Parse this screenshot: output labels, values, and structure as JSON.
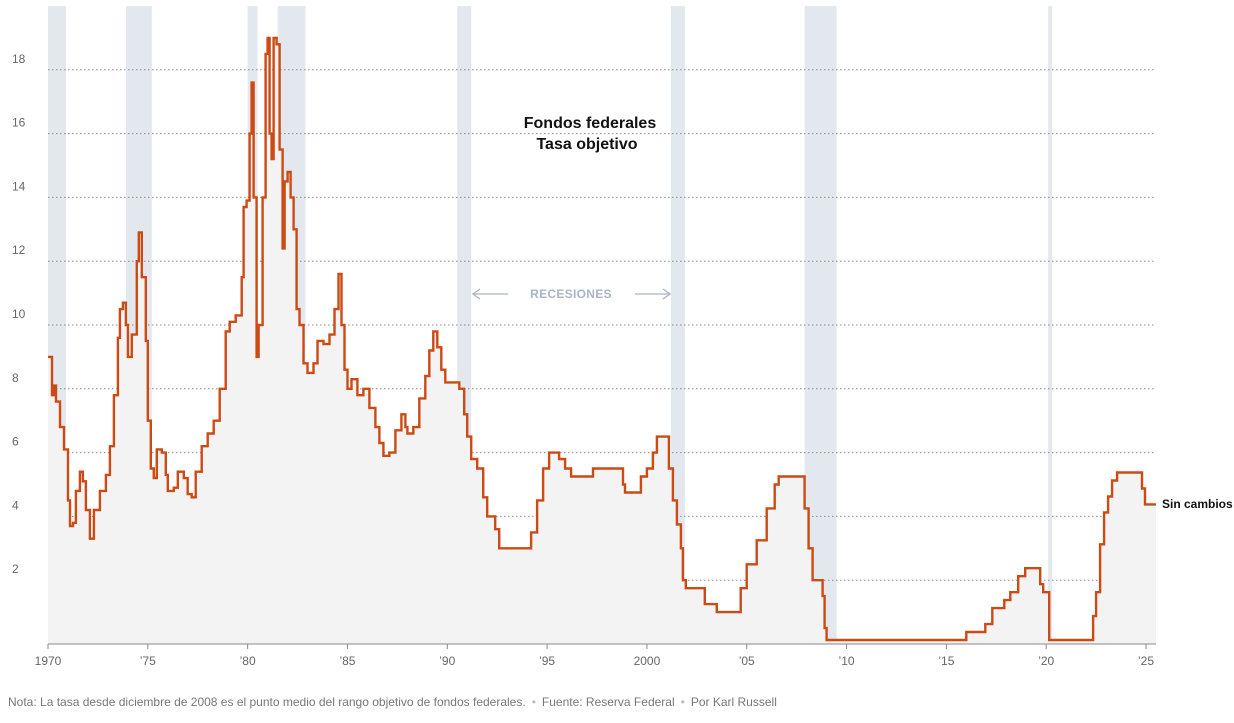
{
  "chart_data": {
    "type": "line",
    "title_lines": [
      "Fondos federales",
      "Tasa objetivo"
    ],
    "recession_label": "RECESIONES",
    "end_label": "Sin cambios",
    "xlim": [
      1970,
      2025.5
    ],
    "ylim": [
      0,
      20
    ],
    "y_ticks": [
      2,
      4,
      6,
      8,
      10,
      12,
      14,
      16,
      18
    ],
    "x_ticks": [
      {
        "year": 1970,
        "label": "1970"
      },
      {
        "year": 1975,
        "label": "’75"
      },
      {
        "year": 1980,
        "label": "’80"
      },
      {
        "year": 1985,
        "label": "’85"
      },
      {
        "year": 1990,
        "label": "’90"
      },
      {
        "year": 1995,
        "label": "’95"
      },
      {
        "year": 2000,
        "label": "2000"
      },
      {
        "year": 2005,
        "label": "’05"
      },
      {
        "year": 2010,
        "label": "’10"
      },
      {
        "year": 2015,
        "label": "’15"
      },
      {
        "year": 2020,
        "label": "’20"
      },
      {
        "year": 2025,
        "label": "’25"
      }
    ],
    "recessions": [
      [
        1970.0,
        1970.9
      ],
      [
        1973.9,
        1975.2
      ],
      [
        1980.0,
        1980.5
      ],
      [
        1981.5,
        1982.9
      ],
      [
        1990.5,
        1991.2
      ],
      [
        2001.2,
        2001.9
      ],
      [
        2007.9,
        2009.5
      ],
      [
        2020.1,
        2020.3
      ]
    ],
    "series": [
      {
        "color": "#cc4a14",
        "points": [
          [
            1970.0,
            9.0
          ],
          [
            1970.15,
            9.0
          ],
          [
            1970.2,
            7.8
          ],
          [
            1970.3,
            8.1
          ],
          [
            1970.4,
            7.6
          ],
          [
            1970.6,
            6.8
          ],
          [
            1970.8,
            6.1
          ],
          [
            1971.0,
            4.5
          ],
          [
            1971.1,
            3.7
          ],
          [
            1971.25,
            3.8
          ],
          [
            1971.4,
            4.8
          ],
          [
            1971.6,
            5.4
          ],
          [
            1971.75,
            5.1
          ],
          [
            1971.9,
            4.2
          ],
          [
            1972.1,
            3.3
          ],
          [
            1972.3,
            4.2
          ],
          [
            1972.6,
            4.8
          ],
          [
            1972.9,
            5.3
          ],
          [
            1973.1,
            6.2
          ],
          [
            1973.3,
            7.8
          ],
          [
            1973.5,
            9.6
          ],
          [
            1973.6,
            10.5
          ],
          [
            1973.75,
            10.7
          ],
          [
            1973.9,
            10.0
          ],
          [
            1974.0,
            9.0
          ],
          [
            1974.2,
            9.7
          ],
          [
            1974.45,
            12.0
          ],
          [
            1974.55,
            12.9
          ],
          [
            1974.7,
            11.5
          ],
          [
            1974.9,
            9.5
          ],
          [
            1975.0,
            7.0
          ],
          [
            1975.15,
            5.5
          ],
          [
            1975.3,
            5.2
          ],
          [
            1975.45,
            6.1
          ],
          [
            1975.7,
            6.0
          ],
          [
            1975.9,
            5.3
          ],
          [
            1976.0,
            4.8
          ],
          [
            1976.3,
            4.9
          ],
          [
            1976.5,
            5.4
          ],
          [
            1976.8,
            5.2
          ],
          [
            1977.0,
            4.7
          ],
          [
            1977.2,
            4.6
          ],
          [
            1977.4,
            5.4
          ],
          [
            1977.7,
            6.2
          ],
          [
            1978.0,
            6.6
          ],
          [
            1978.3,
            7.0
          ],
          [
            1978.6,
            8.0
          ],
          [
            1978.9,
            9.8
          ],
          [
            1979.1,
            10.1
          ],
          [
            1979.4,
            10.3
          ],
          [
            1979.7,
            11.5
          ],
          [
            1979.8,
            13.7
          ],
          [
            1979.95,
            13.9
          ],
          [
            1980.1,
            16.0
          ],
          [
            1980.2,
            17.6
          ],
          [
            1980.3,
            14.0
          ],
          [
            1980.45,
            9.0
          ],
          [
            1980.55,
            10.0
          ],
          [
            1980.75,
            14.0
          ],
          [
            1980.9,
            18.5
          ],
          [
            1981.0,
            19.0
          ],
          [
            1981.1,
            16.0
          ],
          [
            1981.2,
            15.2
          ],
          [
            1981.3,
            19.0
          ],
          [
            1981.45,
            18.8
          ],
          [
            1981.6,
            15.5
          ],
          [
            1981.75,
            12.4
          ],
          [
            1981.85,
            14.5
          ],
          [
            1982.0,
            14.8
          ],
          [
            1982.15,
            14.0
          ],
          [
            1982.3,
            13.0
          ],
          [
            1982.45,
            10.5
          ],
          [
            1982.6,
            10.0
          ],
          [
            1982.8,
            8.8
          ],
          [
            1983.0,
            8.5
          ],
          [
            1983.3,
            8.8
          ],
          [
            1983.5,
            9.5
          ],
          [
            1983.8,
            9.4
          ],
          [
            1984.1,
            9.7
          ],
          [
            1984.35,
            10.5
          ],
          [
            1984.55,
            11.6
          ],
          [
            1984.7,
            10.0
          ],
          [
            1984.85,
            8.6
          ],
          [
            1985.0,
            8.0
          ],
          [
            1985.2,
            8.3
          ],
          [
            1985.5,
            7.8
          ],
          [
            1985.8,
            8.0
          ],
          [
            1986.1,
            7.4
          ],
          [
            1986.4,
            6.8
          ],
          [
            1986.6,
            6.3
          ],
          [
            1986.8,
            5.9
          ],
          [
            1987.1,
            6.0
          ],
          [
            1987.4,
            6.7
          ],
          [
            1987.7,
            7.2
          ],
          [
            1987.9,
            6.8
          ],
          [
            1988.0,
            6.6
          ],
          [
            1988.3,
            6.8
          ],
          [
            1988.6,
            7.7
          ],
          [
            1988.9,
            8.4
          ],
          [
            1989.1,
            9.2
          ],
          [
            1989.3,
            9.8
          ],
          [
            1989.5,
            9.3
          ],
          [
            1989.7,
            8.6
          ],
          [
            1989.9,
            8.2
          ],
          [
            1990.3,
            8.2
          ],
          [
            1990.6,
            8.0
          ],
          [
            1990.85,
            7.2
          ],
          [
            1991.0,
            6.5
          ],
          [
            1991.2,
            5.8
          ],
          [
            1991.5,
            5.5
          ],
          [
            1991.8,
            4.6
          ],
          [
            1992.0,
            4.0
          ],
          [
            1992.4,
            3.6
          ],
          [
            1992.6,
            3.0
          ],
          [
            1993.5,
            3.0
          ],
          [
            1994.0,
            3.0
          ],
          [
            1994.2,
            3.5
          ],
          [
            1994.5,
            4.5
          ],
          [
            1994.8,
            5.5
          ],
          [
            1995.1,
            6.0
          ],
          [
            1995.4,
            6.0
          ],
          [
            1995.6,
            5.8
          ],
          [
            1995.9,
            5.5
          ],
          [
            1996.2,
            5.25
          ],
          [
            1997.0,
            5.25
          ],
          [
            1997.3,
            5.5
          ],
          [
            1998.6,
            5.5
          ],
          [
            1998.8,
            5.0
          ],
          [
            1998.9,
            4.75
          ],
          [
            1999.5,
            4.75
          ],
          [
            1999.7,
            5.25
          ],
          [
            2000.0,
            5.5
          ],
          [
            2000.3,
            6.0
          ],
          [
            2000.5,
            6.5
          ],
          [
            2000.9,
            6.5
          ],
          [
            2001.1,
            5.5
          ],
          [
            2001.3,
            4.5
          ],
          [
            2001.5,
            3.75
          ],
          [
            2001.7,
            3.0
          ],
          [
            2001.8,
            2.0
          ],
          [
            2001.95,
            1.75
          ],
          [
            2002.9,
            1.25
          ],
          [
            2003.5,
            1.0
          ],
          [
            2004.4,
            1.0
          ],
          [
            2004.7,
            1.75
          ],
          [
            2005.0,
            2.5
          ],
          [
            2005.5,
            3.25
          ],
          [
            2006.0,
            4.25
          ],
          [
            2006.4,
            5.0
          ],
          [
            2006.6,
            5.25
          ],
          [
            2007.7,
            5.25
          ],
          [
            2007.9,
            4.25
          ],
          [
            2008.1,
            3.0
          ],
          [
            2008.3,
            2.0
          ],
          [
            2008.8,
            1.5
          ],
          [
            2008.9,
            0.5
          ],
          [
            2009.0,
            0.125
          ],
          [
            2015.95,
            0.125
          ],
          [
            2016.0,
            0.375
          ],
          [
            2016.95,
            0.625
          ],
          [
            2017.3,
            1.125
          ],
          [
            2017.9,
            1.375
          ],
          [
            2018.2,
            1.625
          ],
          [
            2018.6,
            2.125
          ],
          [
            2018.95,
            2.375
          ],
          [
            2019.5,
            2.375
          ],
          [
            2019.7,
            1.875
          ],
          [
            2019.85,
            1.625
          ],
          [
            2020.15,
            0.125
          ],
          [
            2022.2,
            0.125
          ],
          [
            2022.35,
            0.875
          ],
          [
            2022.5,
            1.625
          ],
          [
            2022.7,
            3.125
          ],
          [
            2022.9,
            4.125
          ],
          [
            2023.1,
            4.625
          ],
          [
            2023.3,
            5.125
          ],
          [
            2023.55,
            5.375
          ],
          [
            2024.7,
            5.375
          ],
          [
            2024.8,
            4.875
          ],
          [
            2024.95,
            4.375
          ],
          [
            2025.5,
            4.375
          ]
        ]
      }
    ]
  },
  "footnote": {
    "note": "Nota: La tasa desde diciembre de 2008 es el punto medio del rango objetivo de fondos federales.",
    "source": "Fuente: Reserva Federal",
    "byline": "Por Karl Russell",
    "separator": "•"
  }
}
